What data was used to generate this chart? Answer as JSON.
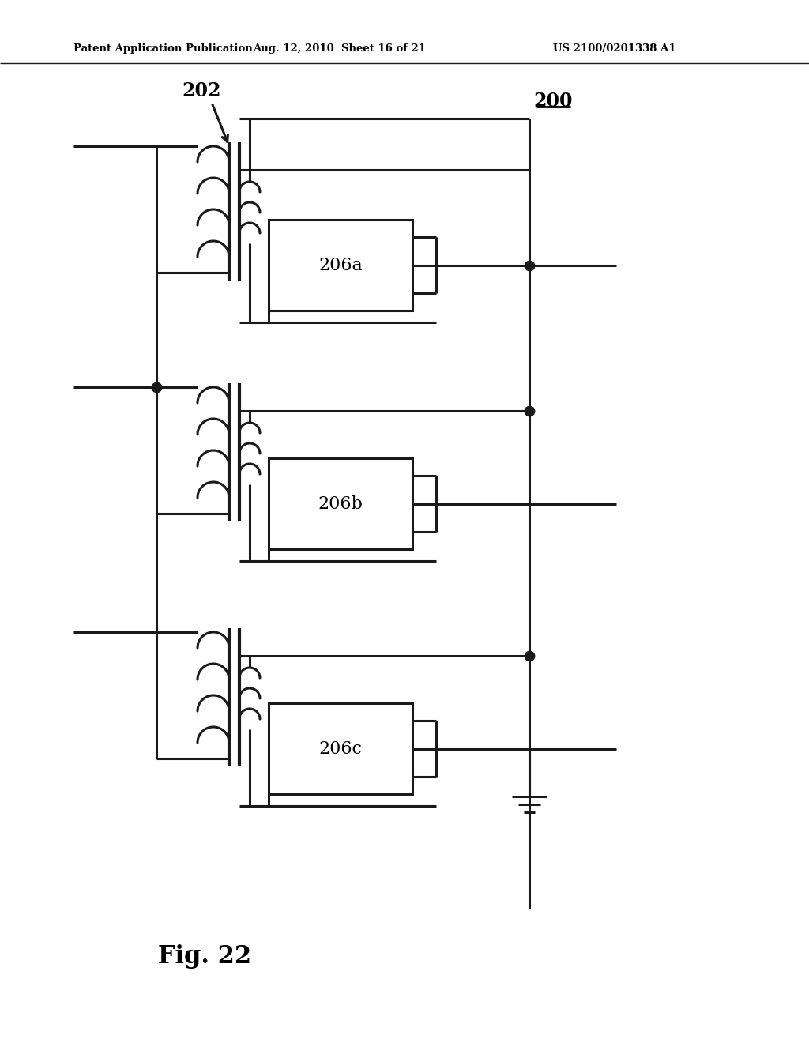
{
  "title_left": "Patent Application Publication",
  "title_center": "Aug. 12, 2010  Sheet 16 of 21",
  "title_right": "US 2100/0201338 A1",
  "label_202": "202",
  "label_200": "200",
  "label_206a": "206a",
  "label_206b": "206b",
  "label_206c": "206c",
  "fig_label": "Fig. 22",
  "bg_color": "#ffffff",
  "line_color": "#1a1a1a",
  "lw": 2.2
}
